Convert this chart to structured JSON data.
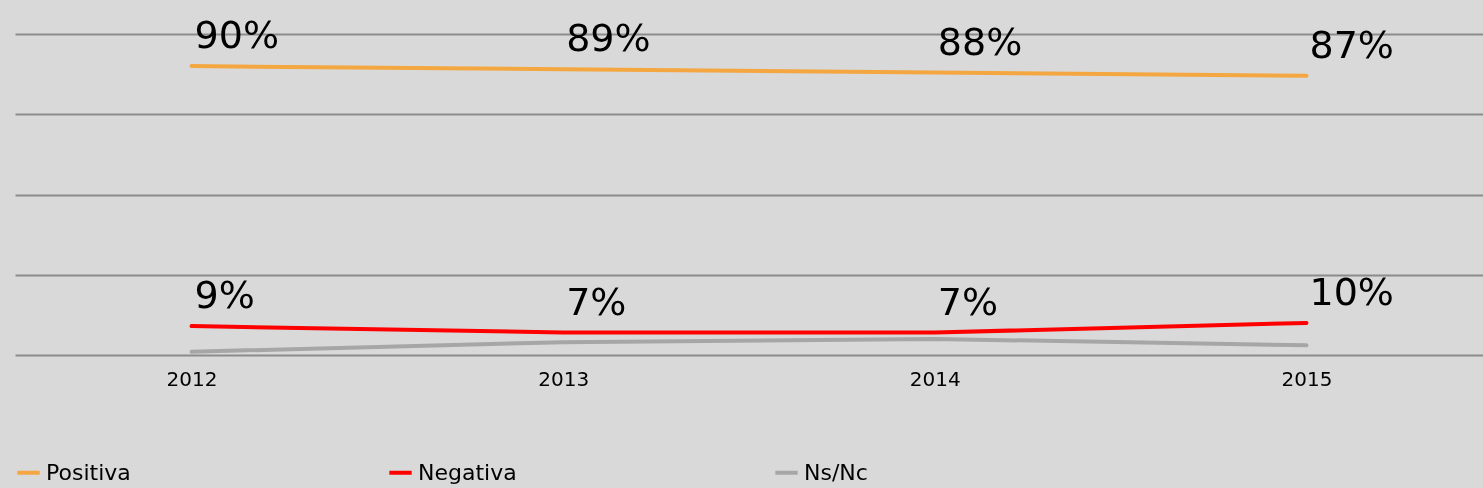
{
  "chart_data": {
    "type": "line",
    "categories": [
      "2012",
      "2013",
      "2014",
      "2015"
    ],
    "series": [
      {
        "name": "Positiva",
        "color": "#f4a641",
        "values": [
          90,
          89,
          88,
          87
        ],
        "value_labels": [
          "90%",
          "89%",
          "88%",
          "87%"
        ]
      },
      {
        "name": "Negativa",
        "color": "#ff0000",
        "values": [
          9,
          7,
          7,
          10
        ],
        "value_labels": [
          "9%",
          "7%",
          "7%",
          "10%"
        ]
      },
      {
        "name": "Ns/Nc",
        "color": "#a6a6a6",
        "values": [
          1,
          4,
          5,
          3
        ]
      }
    ],
    "ylim": [
      0,
      100
    ],
    "yticks": [
      {
        "value": 0,
        "label": null
      },
      {
        "value": 25,
        "label": null
      },
      {
        "value": 50,
        "label": null
      },
      {
        "value": 75,
        "label": null
      },
      {
        "value": 100,
        "label": null
      }
    ],
    "grid": "y",
    "legend": "bottom",
    "tick_labels": "x"
  }
}
